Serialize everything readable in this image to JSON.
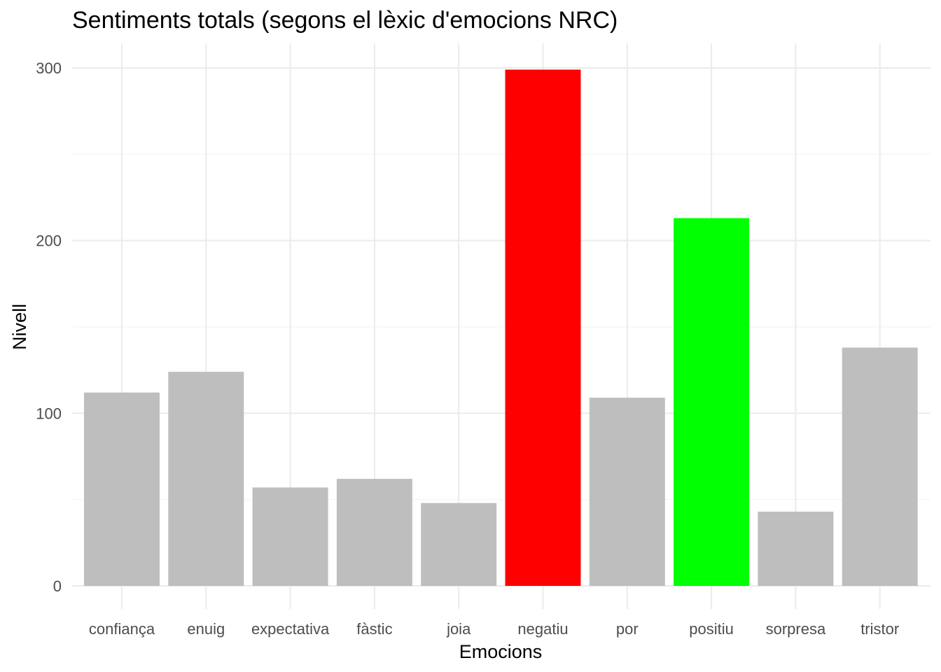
{
  "chart_data": {
    "type": "bar",
    "title": "Sentiments totals (segons el lèxic d'emocions NRC)",
    "xlabel": "Emocions",
    "ylabel": "Nivell",
    "categories": [
      "confiança",
      "enuig",
      "expectativa",
      "fàstic",
      "joia",
      "negatiu",
      "por",
      "positiu",
      "sorpresa",
      "tristor"
    ],
    "values": [
      112,
      124,
      57,
      62,
      48,
      299,
      109,
      213,
      43,
      138
    ],
    "colors": [
      "#bebebe",
      "#bebebe",
      "#bebebe",
      "#bebebe",
      "#bebebe",
      "#ff0000",
      "#bebebe",
      "#00ff00",
      "#bebebe",
      "#bebebe"
    ],
    "ylim": [
      0,
      300
    ],
    "yticks": [
      "0",
      "100",
      "200",
      "300"
    ],
    "grid": true,
    "legend": "none"
  }
}
